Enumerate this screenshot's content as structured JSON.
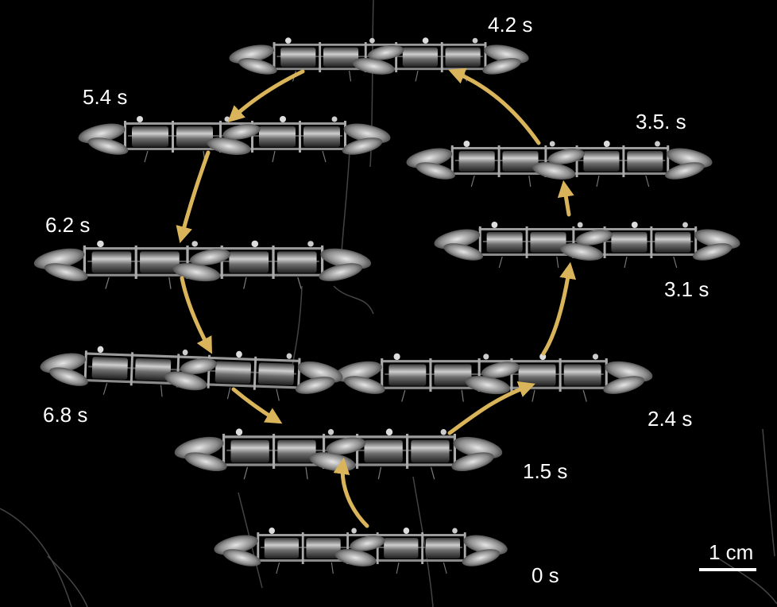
{
  "frames": [
    {
      "time_label": "0 s"
    },
    {
      "time_label": "1.5 s"
    },
    {
      "time_label": "2.4 s"
    },
    {
      "time_label": "3.1 s"
    },
    {
      "time_label": "3.5. s"
    },
    {
      "time_label": "4.2 s"
    },
    {
      "time_label": "5.4 s"
    },
    {
      "time_label": "6.2 s"
    },
    {
      "time_label": "6.8 s"
    }
  ],
  "scale_bar": {
    "label": "1 cm"
  },
  "colors": {
    "background": "#000000",
    "arrow": "#d9b45a",
    "label": "#ffffff"
  }
}
